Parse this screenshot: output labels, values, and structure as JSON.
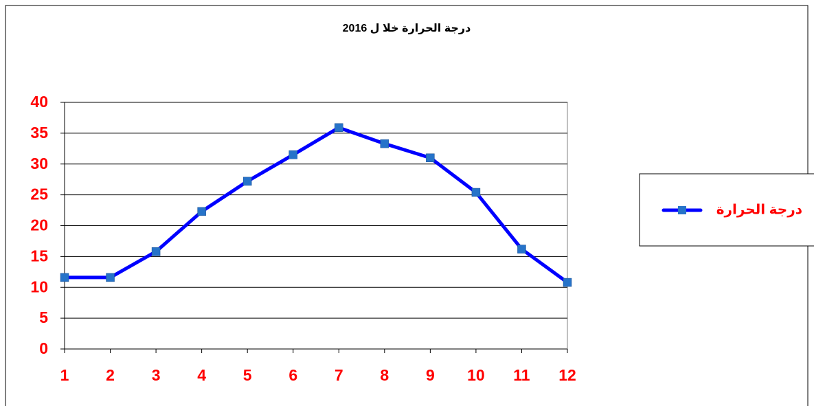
{
  "chart_data": {
    "type": "line",
    "title": "درجة الحرارة خلا ل 2016",
    "x": [
      1,
      2,
      3,
      4,
      5,
      6,
      7,
      8,
      9,
      10,
      11,
      12
    ],
    "series": [
      {
        "name": "درجة الحرارة",
        "color": "#0000ff",
        "marker_color": "#2673c9",
        "values": [
          11.6,
          11.6,
          15.8,
          22.3,
          27.2,
          31.5,
          35.9,
          33.3,
          31.0,
          25.4,
          16.2,
          10.8
        ]
      }
    ],
    "xlim": [
      1,
      12
    ],
    "xticks": [
      1,
      2,
      3,
      4,
      5,
      6,
      7,
      8,
      9,
      10,
      11,
      12
    ],
    "ylim": [
      0,
      40
    ],
    "yticks": [
      0,
      5,
      10,
      15,
      20,
      25,
      30,
      35,
      40
    ],
    "grid": true,
    "legend": "right"
  }
}
